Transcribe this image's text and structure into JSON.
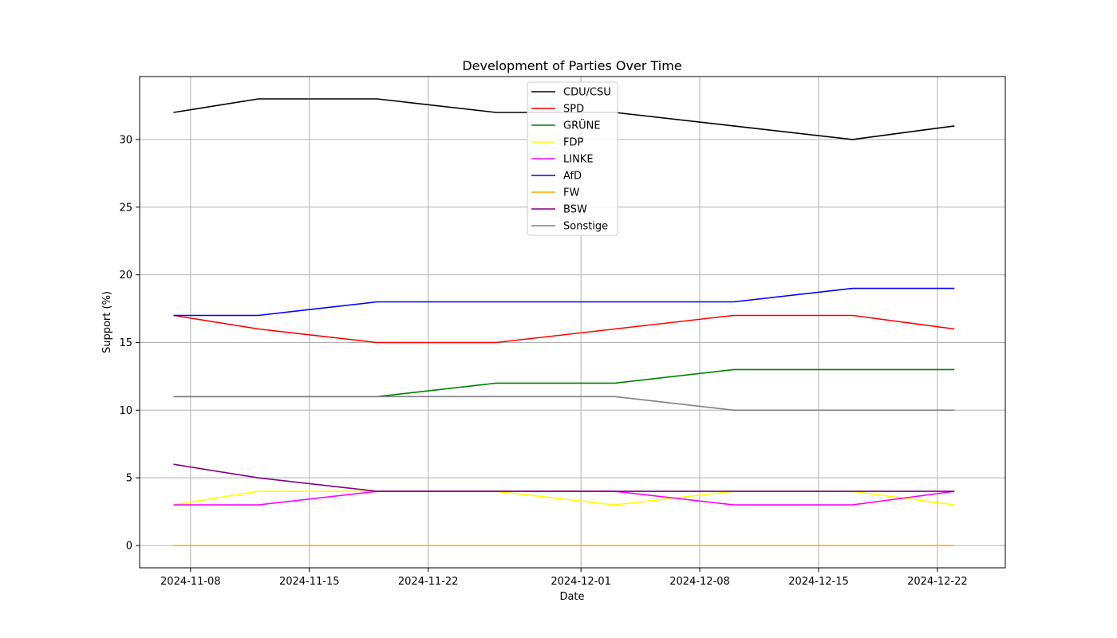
{
  "chart_data": {
    "type": "line",
    "title": "Development of Parties Over Time",
    "xlabel": "Date",
    "ylabel": "Support (%)",
    "x": [
      "2024-11-07",
      "2024-11-12",
      "2024-11-19",
      "2024-11-26",
      "2024-12-03",
      "2024-12-10",
      "2024-12-17",
      "2024-12-23"
    ],
    "xticks": [
      "2024-11-08",
      "2024-11-15",
      "2024-11-22",
      "2024-12-01",
      "2024-12-08",
      "2024-12-15",
      "2024-12-22"
    ],
    "xlim": [
      "2024-11-05",
      "2024-12-26"
    ],
    "yticks": [
      0,
      5,
      10,
      15,
      20,
      25,
      30
    ],
    "ylim": [
      -1.65,
      34.65
    ],
    "grid": true,
    "legend_position": "top-center",
    "series": [
      {
        "name": "CDU/CSU",
        "color": "#000000",
        "values": [
          32,
          33,
          33,
          32,
          32,
          31,
          30,
          31
        ]
      },
      {
        "name": "SPD",
        "color": "#ff0000",
        "values": [
          17,
          16,
          15,
          15,
          16,
          17,
          17,
          16
        ]
      },
      {
        "name": "GRÜNE",
        "color": "#008000",
        "values": [
          11,
          11,
          11,
          12,
          12,
          13,
          13,
          13
        ]
      },
      {
        "name": "FDP",
        "color": "#ffff00",
        "values": [
          3,
          4,
          4,
          4,
          3,
          4,
          4,
          3
        ]
      },
      {
        "name": "LINKE",
        "color": "#ff00ff",
        "values": [
          3,
          3,
          4,
          4,
          4,
          3,
          3,
          4
        ]
      },
      {
        "name": "AfD",
        "color": "#0000ff",
        "values": [
          17,
          17,
          18,
          18,
          18,
          18,
          19,
          19
        ]
      },
      {
        "name": "FW",
        "color": "#ffa500",
        "values": [
          0,
          0,
          0,
          0,
          0,
          0,
          0,
          0
        ]
      },
      {
        "name": "BSW",
        "color": "#800080",
        "values": [
          6,
          5,
          4,
          4,
          4,
          4,
          4,
          4
        ]
      },
      {
        "name": "Sonstige",
        "color": "#808080",
        "values": [
          11,
          11,
          11,
          11,
          11,
          10,
          10,
          10
        ]
      }
    ]
  }
}
